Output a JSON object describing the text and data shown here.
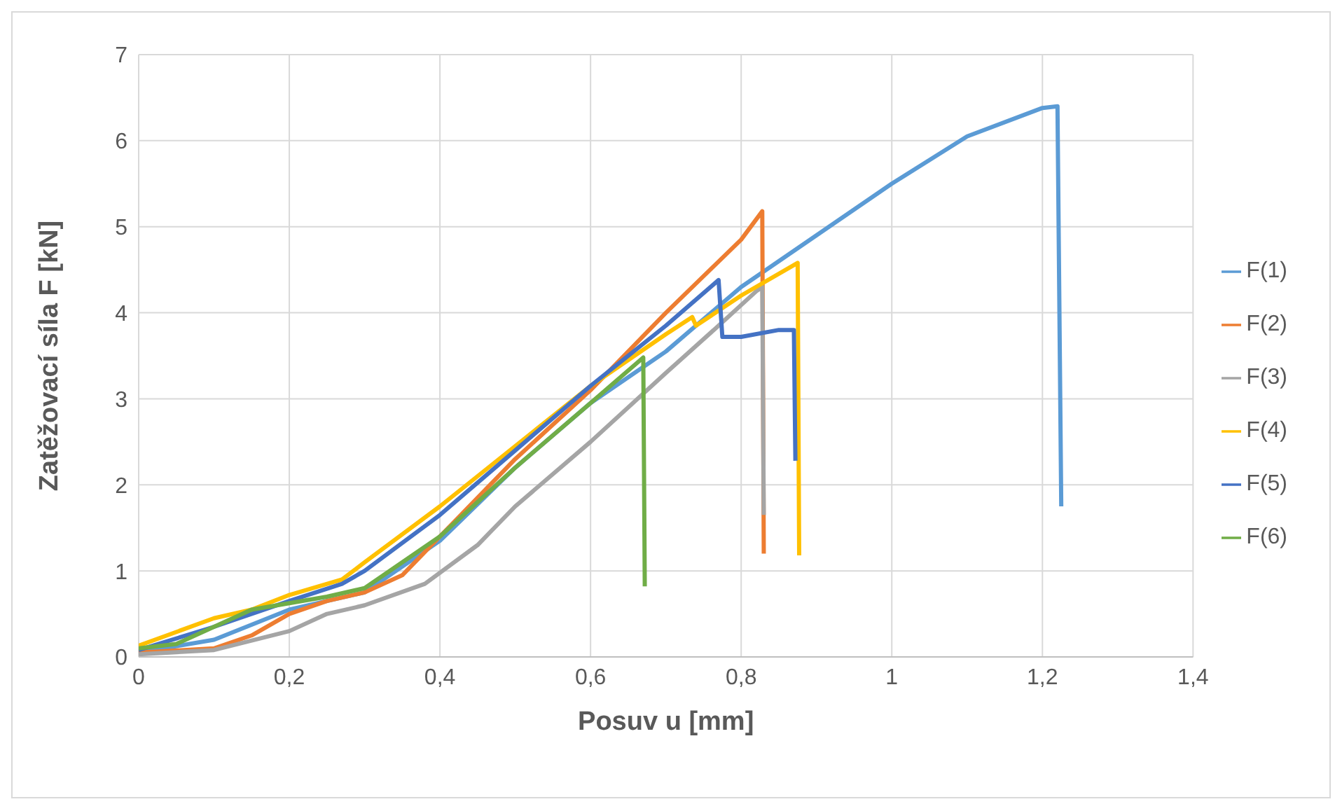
{
  "chart_data": {
    "type": "line",
    "xlabel": "Posuv u [mm]",
    "ylabel": "Zatěžovací síla F [kN]",
    "xlim": [
      0,
      1.4
    ],
    "xticks": [
      {
        "value": 0,
        "label": "0"
      },
      {
        "value": 0.2,
        "label": "0,2"
      },
      {
        "value": 0.4,
        "label": "0,4"
      },
      {
        "value": 0.6,
        "label": "0,6"
      },
      {
        "value": 0.8,
        "label": "0,8"
      },
      {
        "value": 1,
        "label": "1"
      },
      {
        "value": 1.2,
        "label": "1,2"
      },
      {
        "value": 1.4,
        "label": "1,4"
      }
    ],
    "ylim": [
      0,
      7
    ],
    "yticks": [
      0,
      1,
      2,
      3,
      4,
      5,
      6,
      7
    ],
    "grid": true,
    "legend": "right",
    "marker": "none",
    "line_style": "solid",
    "series": [
      {
        "name": "F(1)",
        "color": "#5b9bd5",
        "x": [
          0,
          0.1,
          0.2,
          0.3,
          0.4,
          0.5,
          0.6,
          0.7,
          0.8,
          0.9,
          1.0,
          1.1,
          1.2,
          1.22,
          1.225
        ],
        "values": [
          0.05,
          0.2,
          0.55,
          0.75,
          1.35,
          2.2,
          2.95,
          3.55,
          4.3,
          4.9,
          5.5,
          6.05,
          6.38,
          6.4,
          1.75
        ]
      },
      {
        "name": "F(2)",
        "color": "#ed7d31",
        "x": [
          0,
          0.1,
          0.15,
          0.2,
          0.25,
          0.3,
          0.35,
          0.4,
          0.5,
          0.6,
          0.7,
          0.8,
          0.828,
          0.83
        ],
        "values": [
          0.05,
          0.1,
          0.25,
          0.5,
          0.65,
          0.75,
          0.95,
          1.4,
          2.3,
          3.1,
          4.0,
          4.85,
          5.18,
          1.2
        ]
      },
      {
        "name": "F(3)",
        "color": "#a5a5a5",
        "x": [
          0,
          0.1,
          0.2,
          0.25,
          0.3,
          0.38,
          0.45,
          0.5,
          0.6,
          0.7,
          0.77,
          0.82,
          0.828,
          0.83
        ],
        "values": [
          0.03,
          0.08,
          0.3,
          0.5,
          0.6,
          0.85,
          1.3,
          1.75,
          2.5,
          3.3,
          3.85,
          4.25,
          4.3,
          1.65
        ]
      },
      {
        "name": "F(4)",
        "color": "#ffc000",
        "x": [
          0,
          0.1,
          0.15,
          0.2,
          0.27,
          0.3,
          0.4,
          0.5,
          0.6,
          0.7,
          0.735,
          0.74,
          0.8,
          0.875,
          0.877
        ],
        "values": [
          0.13,
          0.45,
          0.55,
          0.72,
          0.9,
          1.1,
          1.75,
          2.45,
          3.15,
          3.75,
          3.95,
          3.85,
          4.2,
          4.58,
          1.18
        ]
      },
      {
        "name": "F(5)",
        "color": "#4472c4",
        "x": [
          0,
          0.1,
          0.2,
          0.27,
          0.3,
          0.4,
          0.5,
          0.6,
          0.7,
          0.77,
          0.775,
          0.8,
          0.85,
          0.87,
          0.872
        ],
        "values": [
          0.08,
          0.35,
          0.65,
          0.85,
          1.0,
          1.65,
          2.4,
          3.15,
          3.85,
          4.38,
          3.72,
          3.72,
          3.8,
          3.8,
          2.28
        ]
      },
      {
        "name": "F(6)",
        "color": "#70ad47",
        "x": [
          0,
          0.05,
          0.1,
          0.15,
          0.25,
          0.3,
          0.4,
          0.5,
          0.6,
          0.67,
          0.672
        ],
        "values": [
          0.1,
          0.15,
          0.35,
          0.55,
          0.7,
          0.8,
          1.4,
          2.2,
          2.95,
          3.48,
          0.82
        ]
      }
    ]
  }
}
